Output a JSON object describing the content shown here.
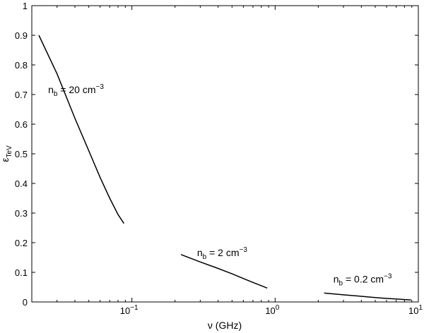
{
  "chart_data": {
    "type": "line",
    "xscale": "log",
    "xlabel": "ν (GHz)",
    "ylabel": "ε",
    "ylabel_sub": "TeV",
    "xlim": [
      0.02,
      10
    ],
    "ylim": [
      0,
      1
    ],
    "grid": false,
    "x_tick_values": [
      0.1,
      1,
      10
    ],
    "x_tick_labels": [
      {
        "base": "10",
        "exp": "−1"
      },
      {
        "base": "10",
        "exp": "0"
      },
      {
        "base": "10",
        "exp": "1"
      }
    ],
    "y_tick_values": [
      0,
      0.1,
      0.2,
      0.3,
      0.4,
      0.5,
      0.6,
      0.7,
      0.8,
      0.9,
      1
    ],
    "y_tick_labels": [
      "0",
      "0.1",
      "0.2",
      "0.3",
      "0.4",
      "0.5",
      "0.6",
      "0.7",
      "0.8",
      "0.9",
      "1"
    ],
    "series": [
      {
        "x": [
          0.0224,
          0.03,
          0.04,
          0.05,
          0.06,
          0.07,
          0.08,
          0.088
        ],
        "y": [
          0.9,
          0.77,
          0.62,
          0.51,
          0.42,
          0.35,
          0.295,
          0.265
        ]
      },
      {
        "x": [
          0.22,
          0.3,
          0.4,
          0.5,
          0.6,
          0.7,
          0.8,
          0.88
        ],
        "y": [
          0.16,
          0.135,
          0.113,
          0.095,
          0.079,
          0.066,
          0.055,
          0.047
        ]
      },
      {
        "x": [
          2.2,
          3,
          4,
          5,
          6,
          7,
          8,
          8.9
        ],
        "y": [
          0.03,
          0.024,
          0.019,
          0.015,
          0.012,
          0.01,
          0.008,
          0.007
        ]
      }
    ],
    "annotations": [
      {
        "main": "n",
        "sub": "b",
        "text": " = 20 cm",
        "sup": "−3",
        "x": 0.026,
        "y": 0.705
      },
      {
        "main": "n",
        "sub": "b",
        "text": " = 2 cm",
        "sup": "−3",
        "x": 0.285,
        "y": 0.155
      },
      {
        "main": "n",
        "sub": "b",
        "text": " = 0.2 cm",
        "sup": "−3",
        "x": 2.55,
        "y": 0.065
      }
    ]
  }
}
